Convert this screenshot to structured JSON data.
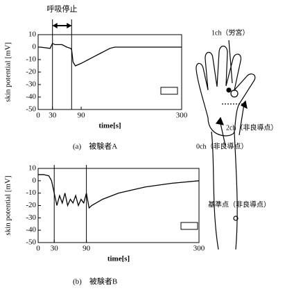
{
  "chart_data": [
    {
      "type": "line",
      "annotation": "呼吸停止",
      "xlabel": "time[s]",
      "ylabel": "skin potential [mV]",
      "caption": "(a)　被験者A",
      "xlim": [
        0,
        300
      ],
      "xticks": [
        0,
        30,
        90,
        300
      ],
      "ylim": [
        -50,
        10
      ],
      "yticks": [
        10,
        0,
        -10,
        -20,
        -30,
        -40,
        -50
      ],
      "events": [
        30,
        70
      ],
      "color": "#000000",
      "x": [
        0,
        5,
        25,
        30,
        35,
        50,
        60,
        68,
        70,
        73,
        78,
        90,
        100,
        110,
        120,
        130,
        140,
        150,
        160,
        300
      ],
      "values": [
        0,
        0,
        -1,
        3,
        2,
        2,
        0,
        -1,
        -2,
        -12,
        -15,
        -13,
        -11,
        -9,
        -7,
        -5,
        -3,
        -1,
        0,
        0
      ]
    },
    {
      "type": "line",
      "xlabel": "time[s]",
      "ylabel": "skin potential [mV]",
      "caption": "(b)　被験者B",
      "xlim": [
        0,
        300
      ],
      "xticks": [
        0,
        30,
        90,
        300
      ],
      "ylim": [
        -50,
        10
      ],
      "yticks": [
        10,
        0,
        -10,
        -20,
        -30,
        -40,
        -50
      ],
      "events": [
        30,
        90
      ],
      "color": "#000000",
      "x": [
        0,
        10,
        20,
        25,
        30,
        35,
        40,
        45,
        50,
        55,
        60,
        65,
        70,
        75,
        80,
        85,
        90,
        95,
        100,
        120,
        150,
        200,
        250,
        300
      ],
      "values": [
        5,
        5,
        4,
        0,
        -10,
        -20,
        -12,
        -18,
        -10,
        -20,
        -15,
        -18,
        -12,
        -20,
        -15,
        -18,
        -10,
        -22,
        -20,
        -15,
        -10,
        -5,
        -2,
        0
      ]
    }
  ],
  "diagram": {
    "labels": [
      "1ch（労宮）",
      "2ch（非良導点）",
      "0ch（非良導点）",
      "基準点（非良導点）"
    ]
  }
}
